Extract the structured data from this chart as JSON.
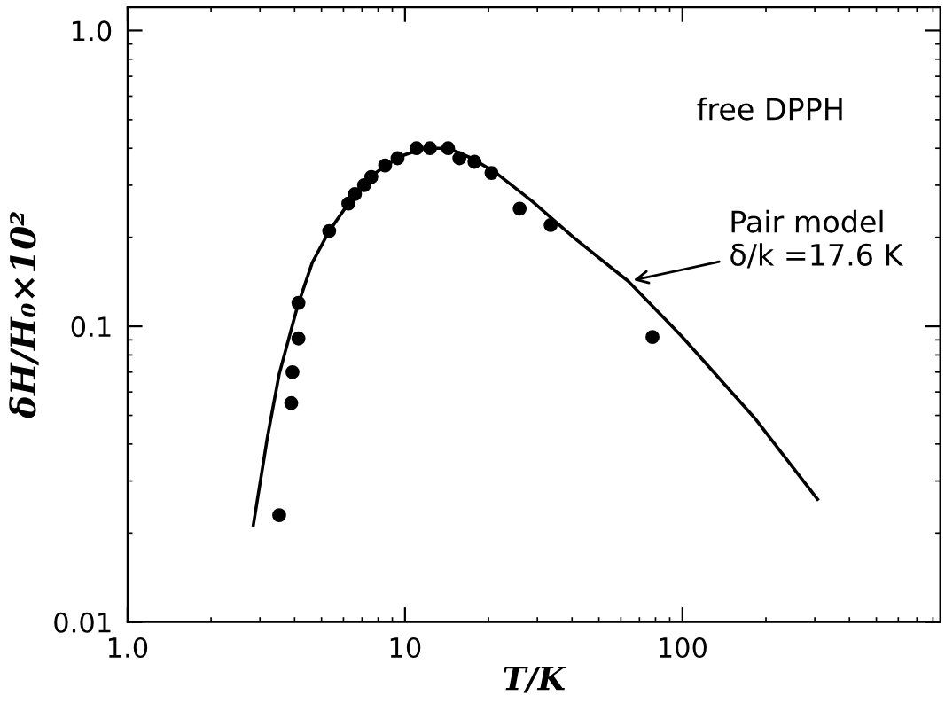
{
  "chart_data": {
    "type": "scatter",
    "xlabel": "T/K",
    "ylabel": "δH/H₀×10²",
    "log": "xy",
    "xlim": [
      1,
      850
    ],
    "ylim": [
      0.01,
      1.2
    ],
    "xticks": [
      {
        "value": 1,
        "label": "1.0"
      },
      10,
      100
    ],
    "yticks": [
      0.01,
      0.1,
      {
        "value": 1,
        "label": "1.0"
      }
    ],
    "series": [
      {
        "marker": "circle",
        "color": "#000000",
        "x": [
          3.52,
          3.89,
          3.93,
          4.13,
          4.13,
          5.33,
          6.25,
          6.6,
          7.12,
          7.56,
          8.48,
          9.4,
          11.0,
          12.3,
          14.3,
          15.7,
          17.8,
          20.5,
          25.9,
          33.5,
          78
        ],
        "values": [
          0.023,
          0.055,
          0.07,
          0.091,
          0.12,
          0.21,
          0.26,
          0.28,
          0.3,
          0.32,
          0.35,
          0.37,
          0.4,
          0.4,
          0.4,
          0.37,
          0.36,
          0.33,
          0.25,
          0.22,
          0.092
        ]
      },
      {
        "type": "line",
        "color": "#000000",
        "x": [
          2.84,
          3.19,
          3.52,
          4.1,
          4.63,
          5.33,
          6.25,
          7.83,
          9.6,
          11.7,
          14.3,
          17.4,
          21.3,
          28.7,
          40.7,
          63.8,
          100,
          182,
          307
        ],
        "values": [
          0.0213,
          0.042,
          0.069,
          0.117,
          0.164,
          0.21,
          0.26,
          0.33,
          0.375,
          0.4,
          0.4,
          0.37,
          0.33,
          0.265,
          0.199,
          0.142,
          0.092,
          0.049,
          0.026
        ]
      }
    ],
    "annotations": [
      "free DPPH",
      {
        "text": "Pair model\nδ/k =17.6 K",
        "x": 64,
        "y": 0.142
      }
    ]
  }
}
